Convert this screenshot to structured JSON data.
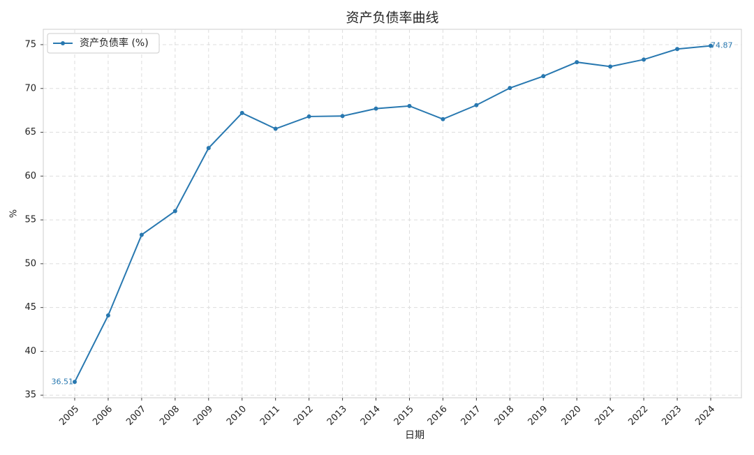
{
  "chart_data": {
    "type": "line",
    "title": "资产负债率曲线",
    "x_label": "日期",
    "y_label": "%",
    "categories": [
      "2005",
      "2006",
      "2007",
      "2008",
      "2009",
      "2010",
      "2011",
      "2012",
      "2013",
      "2014",
      "2015",
      "2016",
      "2017",
      "2018",
      "2019",
      "2020",
      "2021",
      "2022",
      "2023",
      "2024"
    ],
    "series": [
      {
        "name": "资产负债率 (%)",
        "color": "#2878b0",
        "values": [
          36.51,
          44.1,
          53.3,
          56.0,
          63.2,
          67.2,
          65.4,
          66.8,
          66.85,
          67.7,
          68.0,
          66.5,
          68.1,
          70.05,
          71.4,
          73.0,
          72.5,
          73.3,
          74.5,
          74.87
        ],
        "value_labels": [
          "36.51",
          null,
          null,
          null,
          null,
          null,
          null,
          null,
          null,
          null,
          null,
          null,
          null,
          null,
          null,
          null,
          null,
          null,
          null,
          "74.87"
        ]
      }
    ],
    "ylim": [
      34.7,
      76.75
    ],
    "yticks": [
      35,
      40,
      45,
      50,
      55,
      60,
      65,
      70,
      75
    ],
    "grid": true,
    "legend": "upper left"
  }
}
